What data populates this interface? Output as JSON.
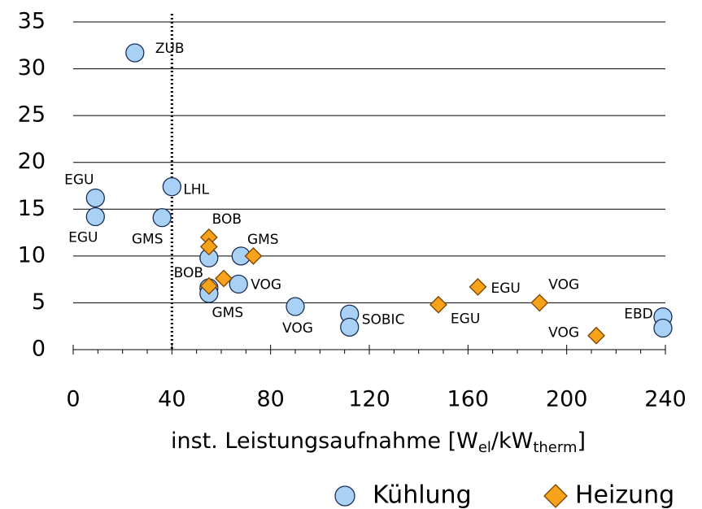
{
  "chart_data": {
    "type": "scatter",
    "xlabel_parts": [
      {
        "text": "inst. Leistungsaufnahme [W"
      },
      {
        "text": "el",
        "sub": true
      },
      {
        "text": "/kW"
      },
      {
        "text": "therm",
        "sub": true
      },
      {
        "text": "]"
      }
    ],
    "xlim": [
      0,
      240
    ],
    "xticks": [
      0,
      40,
      80,
      120,
      160,
      200,
      240
    ],
    "xminorticks": [
      10,
      20,
      30,
      50,
      60,
      70,
      90,
      100,
      110,
      130,
      140,
      150,
      170,
      180,
      190,
      210,
      220,
      230
    ],
    "ylim": [
      0,
      35
    ],
    "yticks": [
      0,
      5,
      10,
      15,
      20,
      25,
      30,
      35
    ],
    "grid": true,
    "reference_line_x": 40,
    "legend": "bottom-right",
    "series": [
      {
        "name": "Kühlung",
        "marker": "circle",
        "color": "#a9d0f5",
        "x": [
          25,
          9,
          9,
          40,
          36,
          55,
          55,
          55,
          68,
          67,
          90,
          112,
          112,
          239,
          239
        ],
        "values": [
          31.7,
          16.2,
          14.2,
          17.4,
          14.1,
          9.8,
          6.6,
          6.0,
          10.0,
          7.0,
          4.6,
          3.8,
          2.4,
          3.5,
          2.3
        ],
        "point_labels": [
          "ZUB",
          "EGU",
          "EGU",
          "LHL",
          "GMS",
          null,
          "BOB",
          "GMS",
          "GMS",
          "VOG",
          "VOG",
          null,
          "SOBIC",
          "EBD",
          null
        ]
      },
      {
        "name": "Heizung",
        "marker": "diamond",
        "color": "#f7a21b",
        "x": [
          55,
          55,
          55,
          61,
          73,
          148,
          164,
          189,
          212
        ],
        "values": [
          12,
          11,
          6.8,
          7.6,
          10,
          4.8,
          6.7,
          5.0,
          1.5
        ],
        "point_labels": [
          "BOB",
          null,
          null,
          null,
          null,
          "EGU",
          "EGU",
          "VOG",
          "VOG"
        ]
      }
    ]
  }
}
